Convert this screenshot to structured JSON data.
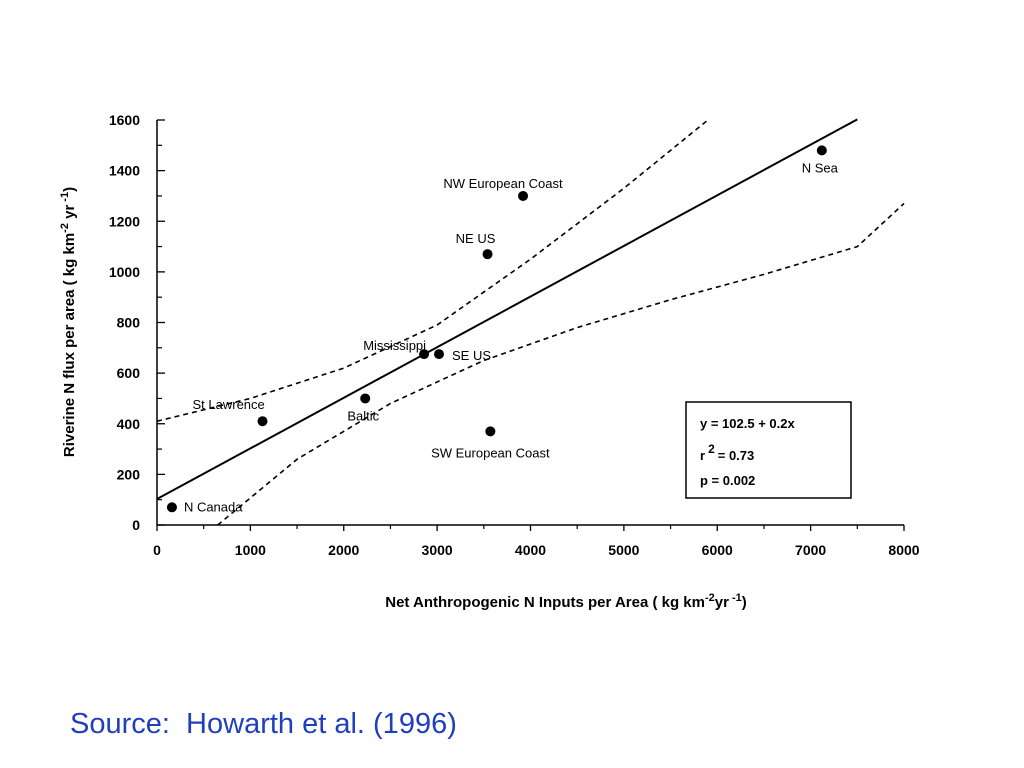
{
  "chart_data": {
    "type": "scatter",
    "xlabel": "Net Anthropogenic N Inputs per Area ( kg km",
    "xlabel_sup1": "-2",
    "xlabel_mid": "yr",
    "xlabel_sup2": "-1",
    "xlabel_end": ")",
    "ylabel": "Riverine  N  flux per area  ( kg km",
    "ylabel_sup1": "-2",
    "ylabel_mid": " yr",
    "ylabel_sup2": "-1",
    "ylabel_end": ")",
    "xlim": [
      0,
      8000
    ],
    "ylim": [
      0,
      1600
    ],
    "xticks": [
      "0",
      "1000",
      "2000",
      "3000",
      "4000",
      "5000",
      "6000",
      "7000",
      "8000"
    ],
    "yticks": [
      "0",
      "200",
      "400",
      "600",
      "800",
      "1000",
      "1200",
      "1400",
      "1600"
    ],
    "points": [
      {
        "label": "N Canada",
        "x": 160,
        "y": 70
      },
      {
        "label": "St Lawrence",
        "x": 1130,
        "y": 410
      },
      {
        "label": "Baltic",
        "x": 2230,
        "y": 500
      },
      {
        "label": "Mississippi",
        "x": 2860,
        "y": 675
      },
      {
        "label": "SE US",
        "x": 3020,
        "y": 675
      },
      {
        "label": "NE US",
        "x": 3540,
        "y": 1070
      },
      {
        "label": "NW European Coast",
        "x": 3920,
        "y": 1300
      },
      {
        "label": "SW European Coast",
        "x": 3570,
        "y": 370
      },
      {
        "label": "N Sea",
        "x": 7120,
        "y": 1480
      }
    ],
    "regression": {
      "intercept": 102.5,
      "slope": 0.2,
      "x_range": [
        0,
        7500
      ]
    },
    "confidence_upper": [
      [
        0,
        410
      ],
      [
        1000,
        500
      ],
      [
        2000,
        620
      ],
      [
        3000,
        790
      ],
      [
        4000,
        1050
      ],
      [
        5000,
        1330
      ],
      [
        5900,
        1600
      ]
    ],
    "confidence_lower": [
      [
        650,
        0
      ],
      [
        1500,
        260
      ],
      [
        2500,
        480
      ],
      [
        3500,
        650
      ],
      [
        4500,
        780
      ],
      [
        5500,
        890
      ],
      [
        6500,
        990
      ],
      [
        7500,
        1100
      ],
      [
        8000,
        1270
      ]
    ],
    "stats": {
      "equation": "y = 102.5 + 0.2x",
      "r2_base": "r",
      "r2_sup": "2",
      "r2_value": "= 0.73",
      "p": "p = 0.002"
    }
  },
  "source_text": "Source:  Howarth et al. (1996)"
}
